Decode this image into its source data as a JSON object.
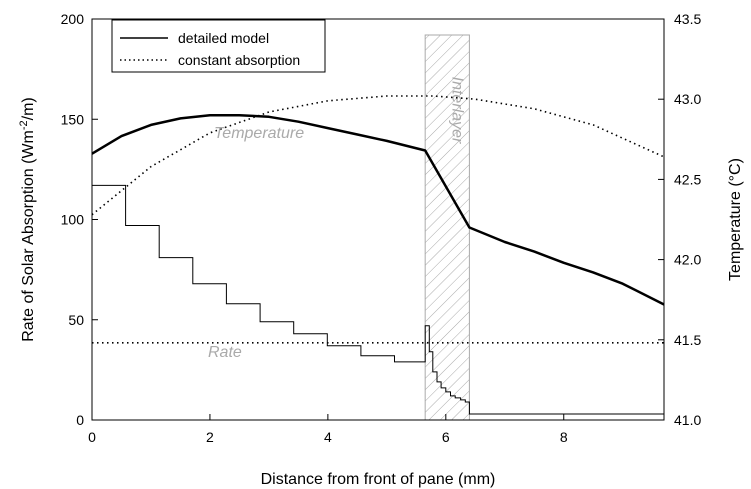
{
  "chart_data": {
    "type": "line",
    "title": "",
    "xlabel": "Distance from front of pane (mm)",
    "ylabel_left": "Rate of Solar Absorption (Wm",
    "ylabel_left_sup": "-2",
    "ylabel_left_tail": "/m)",
    "ylabel_right": "Temperature (°C)",
    "xlim": [
      0,
      9.7
    ],
    "ylim_left": [
      0,
      200
    ],
    "ylim_right": [
      41.0,
      43.5
    ],
    "x_ticks": [
      0,
      2,
      4,
      6,
      8
    ],
    "x_tick_labels": [
      "0",
      "2",
      "4",
      "6",
      "8"
    ],
    "y_left_ticks": [
      0,
      50,
      100,
      150,
      200
    ],
    "y_left_tick_labels": [
      "0",
      "50",
      "100",
      "150",
      "200"
    ],
    "y_right_ticks": [
      41.0,
      41.5,
      42.0,
      42.5,
      43.0,
      43.5
    ],
    "y_right_tick_labels": [
      "41.0",
      "41.5",
      "42.0",
      "42.5",
      "43.0",
      "43.5"
    ],
    "grid": false,
    "legend_position": "top-left",
    "legend": [
      {
        "label": "detailed model",
        "style": "solid"
      },
      {
        "label": "constant absorption",
        "style": "dotted"
      }
    ],
    "annotations": {
      "temperature": "Temperature",
      "rate": "Rate",
      "interlayer": "Interlayer"
    },
    "interlayer_region": {
      "x_start": 5.65,
      "x_end": 6.4
    },
    "series": [
      {
        "role": "temperature-detailed",
        "axis": "right",
        "style": "solid",
        "x": [
          0,
          0.5,
          1.0,
          1.5,
          2.0,
          2.5,
          3.0,
          3.5,
          4.0,
          4.5,
          5.0,
          5.65,
          6.4,
          7.0,
          7.5,
          8.0,
          8.5,
          9.0,
          9.7
        ],
        "y": [
          42.66,
          42.77,
          42.84,
          42.88,
          42.9,
          42.9,
          42.89,
          42.86,
          42.82,
          42.78,
          42.74,
          42.68,
          42.2,
          42.11,
          42.05,
          41.98,
          41.92,
          41.85,
          41.72
        ]
      },
      {
        "role": "temperature-constant",
        "axis": "right",
        "style": "dotted",
        "x": [
          0,
          1,
          2,
          3,
          4,
          5,
          5.8,
          6.5,
          7.5,
          8.5,
          9.7
        ],
        "y": [
          42.28,
          42.58,
          42.79,
          42.92,
          42.99,
          43.02,
          43.02,
          43.0,
          42.94,
          42.84,
          42.64
        ]
      },
      {
        "role": "rate-detailed",
        "axis": "left",
        "style": "step",
        "x": [
          0,
          0.57,
          0.57,
          1.14,
          1.14,
          1.71,
          1.71,
          2.28,
          2.28,
          2.85,
          2.85,
          3.42,
          3.42,
          3.99,
          3.99,
          4.56,
          4.56,
          5.13,
          5.13,
          5.65,
          5.65,
          5.72,
          5.72,
          5.78,
          5.78,
          5.85,
          5.85,
          5.92,
          5.92,
          6.0,
          6.0,
          6.08,
          6.08,
          6.16,
          6.16,
          6.25,
          6.25,
          6.33,
          6.33,
          6.4,
          6.4,
          9.7
        ],
        "y": [
          117,
          117,
          97,
          97,
          81,
          81,
          68,
          68,
          58,
          58,
          49,
          49,
          43,
          43,
          37,
          37,
          32,
          32,
          29,
          29,
          47,
          47,
          34,
          34,
          24,
          24,
          19,
          19,
          16,
          16,
          14,
          14,
          12,
          12,
          11,
          11,
          10,
          10,
          9,
          9,
          3,
          3
        ]
      },
      {
        "role": "rate-constant",
        "axis": "left",
        "style": "dotted",
        "x": [
          0,
          9.7
        ],
        "y": [
          38.5,
          38.5
        ]
      }
    ]
  }
}
